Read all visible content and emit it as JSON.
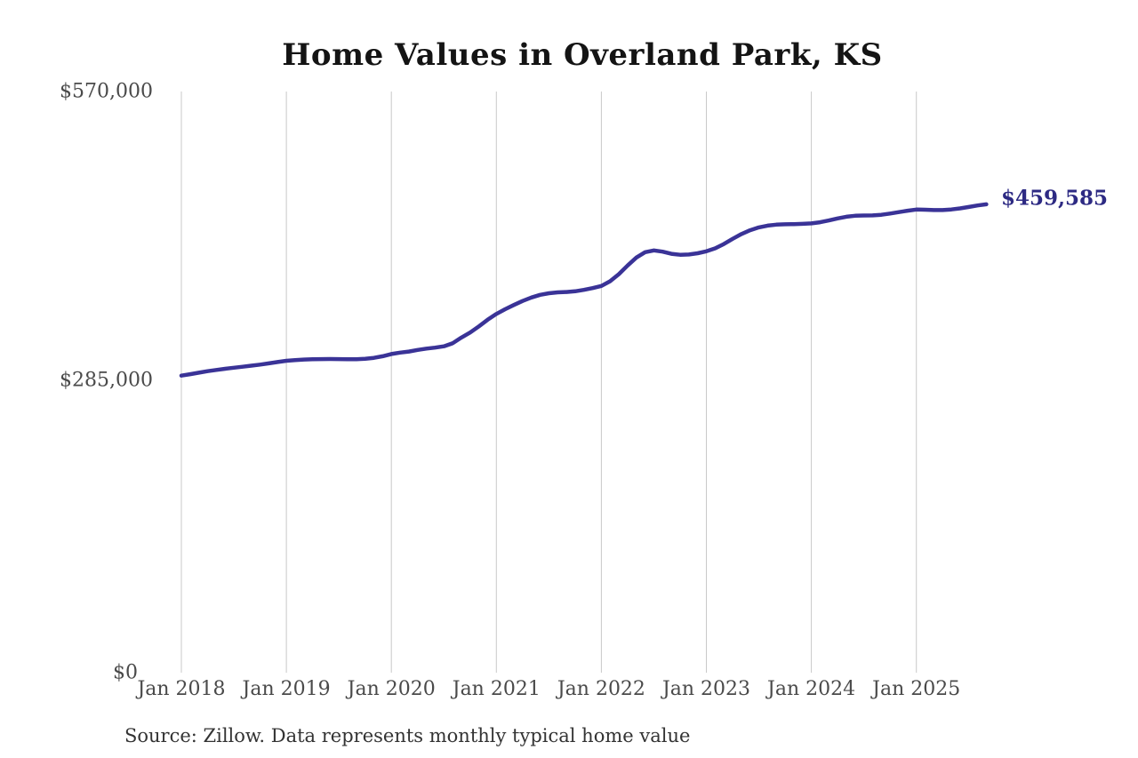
{
  "title": "Home Values in Overland Park, KS",
  "end_label": "$459,585",
  "source_note": "Source: Zillow. Data represents monthly typical home value",
  "y_axis": {
    "ticks": [
      "$570,000",
      "$285,000",
      "$0"
    ],
    "min": 0,
    "max": 570000
  },
  "x_axis": {
    "ticks": [
      "Jan 2018",
      "Jan 2019",
      "Jan 2020",
      "Jan 2021",
      "Jan 2022",
      "Jan 2023",
      "Jan 2024",
      "Jan 2025"
    ]
  },
  "colors": {
    "line": "#3a3397",
    "end_label": "#2d2a83",
    "grid": "#c9c9c9",
    "axis_text": "#4a4a4a",
    "title": "#141414",
    "source": "#333333",
    "background": "#ffffff"
  },
  "chart_data": {
    "type": "line",
    "title": "Home Values in Overland Park, KS",
    "xlabel": "",
    "ylabel": "",
    "ylim": [
      0,
      570000
    ],
    "y_tick_values": [
      570000,
      285000,
      0
    ],
    "grid": "vertical yearly gridlines, no horizontal gridlines, no axis frame",
    "legend": "none",
    "series_name": "Typical home value (monthly)",
    "end_point_label": "$459,585",
    "x": [
      "2018-01",
      "2018-02",
      "2018-03",
      "2018-04",
      "2018-05",
      "2018-06",
      "2018-07",
      "2018-08",
      "2018-09",
      "2018-10",
      "2018-11",
      "2018-12",
      "2019-01",
      "2019-02",
      "2019-03",
      "2019-04",
      "2019-05",
      "2019-06",
      "2019-07",
      "2019-08",
      "2019-09",
      "2019-10",
      "2019-11",
      "2019-12",
      "2020-01",
      "2020-02",
      "2020-03",
      "2020-04",
      "2020-05",
      "2020-06",
      "2020-07",
      "2020-08",
      "2020-09",
      "2020-10",
      "2020-11",
      "2020-12",
      "2021-01",
      "2021-02",
      "2021-03",
      "2021-04",
      "2021-05",
      "2021-06",
      "2021-07",
      "2021-08",
      "2021-09",
      "2021-10",
      "2021-11",
      "2021-12",
      "2022-01",
      "2022-02",
      "2022-03",
      "2022-04",
      "2022-05",
      "2022-06",
      "2022-07",
      "2022-08",
      "2022-09",
      "2022-10",
      "2022-11",
      "2022-12",
      "2023-01",
      "2023-02",
      "2023-03",
      "2023-04",
      "2023-05",
      "2023-06",
      "2023-07",
      "2023-08",
      "2023-09",
      "2023-10",
      "2023-11",
      "2023-12",
      "2024-01",
      "2024-02",
      "2024-03",
      "2024-04",
      "2024-05",
      "2024-06",
      "2024-07",
      "2024-08",
      "2024-09",
      "2024-10",
      "2024-11",
      "2024-12",
      "2025-01",
      "2025-02",
      "2025-03",
      "2025-04",
      "2025-05",
      "2025-06",
      "2025-07",
      "2025-08",
      "2025-09"
    ],
    "values": [
      291800,
      293200,
      294700,
      296100,
      297400,
      298500,
      299500,
      300500,
      301500,
      302600,
      303800,
      305100,
      306300,
      307000,
      307500,
      307800,
      308000,
      308100,
      308000,
      307900,
      307900,
      308300,
      309200,
      310800,
      312900,
      314300,
      315400,
      316900,
      318200,
      319200,
      320500,
      323500,
      329000,
      334000,
      340000,
      346500,
      352200,
      356800,
      361000,
      364900,
      368300,
      370900,
      372500,
      373300,
      373700,
      374400,
      375800,
      377500,
      379600,
      384200,
      391200,
      399600,
      407400,
      412700,
      414400,
      413200,
      411100,
      410100,
      410400,
      411600,
      413500,
      416400,
      420700,
      425700,
      430400,
      434200,
      436900,
      438700,
      439600,
      440000,
      440200,
      440400,
      440900,
      442000,
      443700,
      445700,
      447400,
      448300,
      448600,
      448700,
      449300,
      450500,
      451900,
      453300,
      454400,
      454300,
      453900,
      453900,
      454500,
      455600,
      457000,
      458400,
      459585
    ]
  }
}
